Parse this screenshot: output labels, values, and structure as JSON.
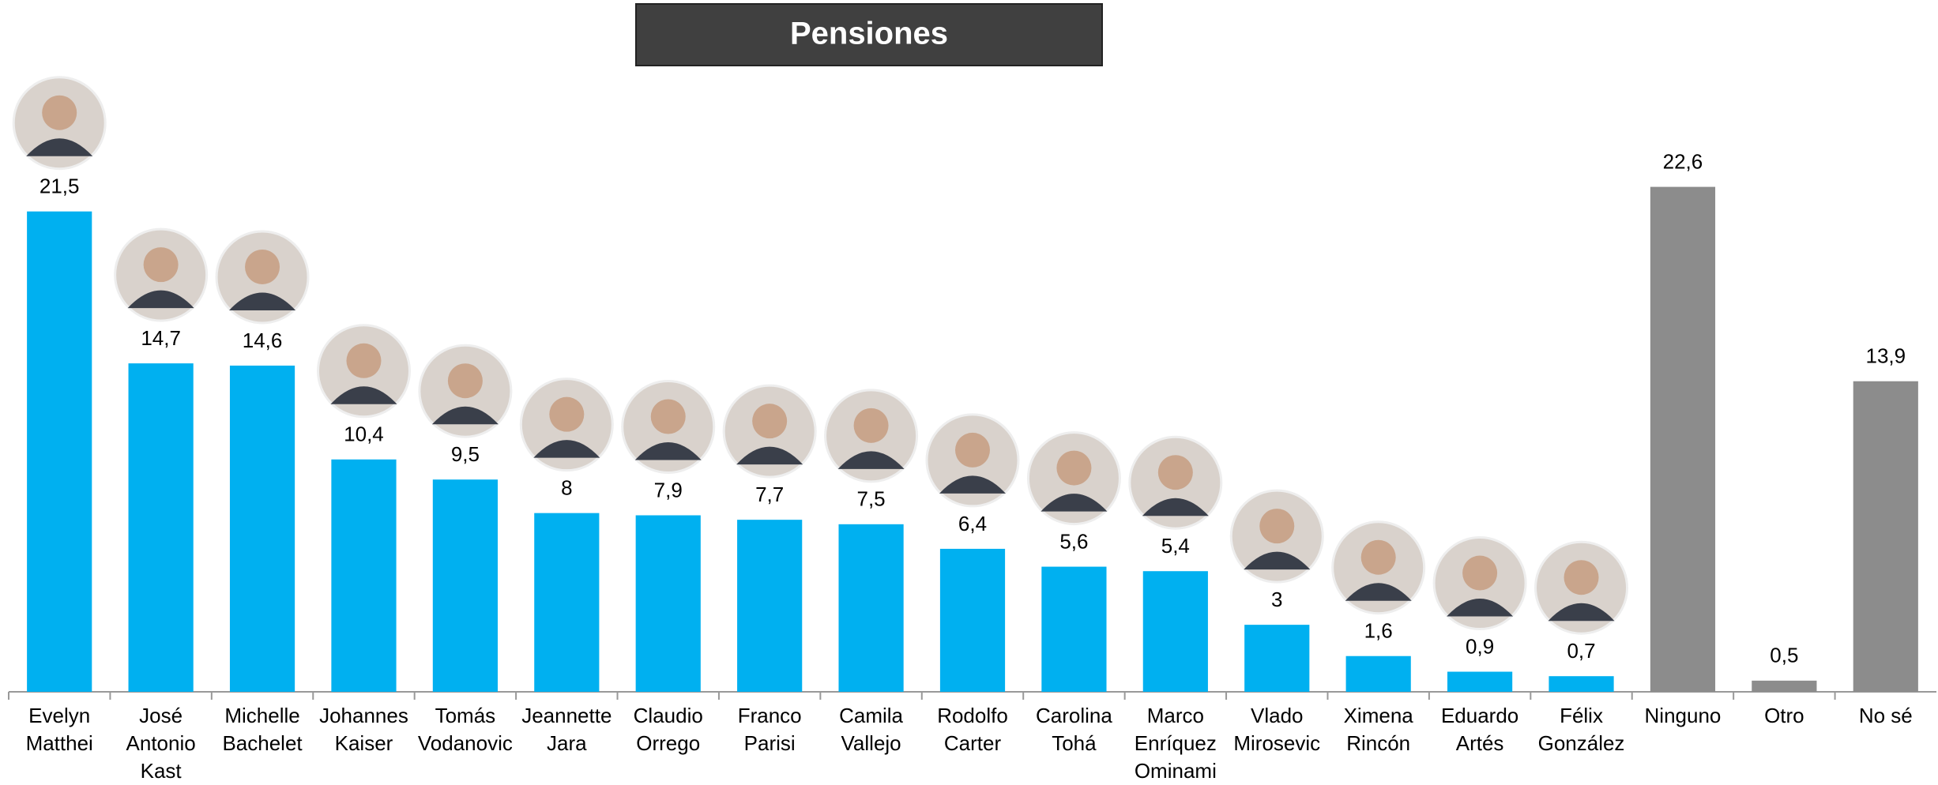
{
  "chart_data": {
    "type": "bar",
    "title": "Pensiones",
    "categories": [
      "Evelyn\nMatthei",
      "José\nAntonio\nKast",
      "Michelle\nBachelet",
      "Johannes\nKaiser",
      "Tomás\nVodanovic",
      "Jeannette\nJara",
      "Claudio\nOrrego",
      "Franco\nParisi",
      "Camila\nVallejo",
      "Rodolfo\nCarter",
      "Carolina\nTohá",
      "Marco\nEnríquez\nOminami",
      "Vlado\nMirosevic",
      "Ximena\nRincón",
      "Eduardo\nArtés",
      "Félix\nGonzález",
      "Ninguno",
      "Otro",
      "No sé"
    ],
    "values": [
      21.5,
      14.7,
      14.6,
      10.4,
      9.5,
      8,
      7.9,
      7.7,
      7.5,
      6.4,
      5.6,
      5.4,
      3,
      1.6,
      0.9,
      0.7,
      22.6,
      0.5,
      13.9
    ],
    "value_labels": [
      "21,5",
      "14,7",
      "14,6",
      "10,4",
      "9,5",
      "8",
      "7,9",
      "7,7",
      "7,5",
      "6,4",
      "5,6",
      "5,4",
      "3",
      "1,6",
      "0,9",
      "0,7",
      "22,6",
      "0,5",
      "13,9"
    ],
    "colors": [
      "#00b0f0",
      "#00b0f0",
      "#00b0f0",
      "#00b0f0",
      "#00b0f0",
      "#00b0f0",
      "#00b0f0",
      "#00b0f0",
      "#00b0f0",
      "#00b0f0",
      "#00b0f0",
      "#00b0f0",
      "#00b0f0",
      "#00b0f0",
      "#00b0f0",
      "#00b0f0",
      "#8c8c8c",
      "#8c8c8c",
      "#8c8c8c"
    ],
    "ylim": [
      0,
      24
    ]
  }
}
